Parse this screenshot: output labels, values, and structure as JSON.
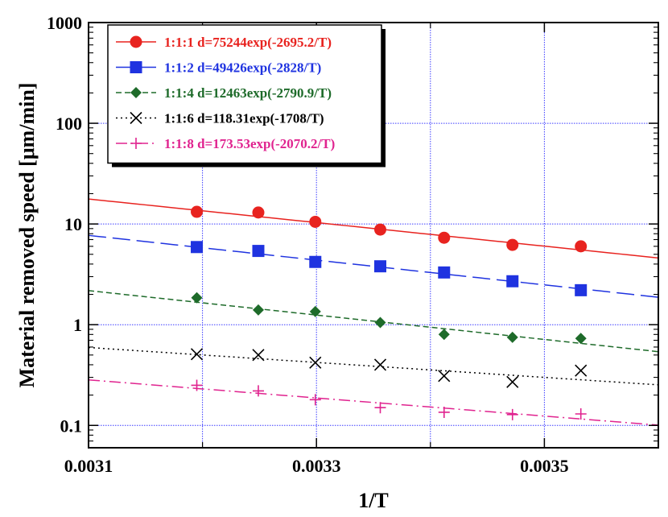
{
  "chart_data": {
    "type": "scatter",
    "title": "",
    "xlabel": "1/T",
    "ylabel": "Material removed speed [μm/min]",
    "xlim": [
      0.0031,
      0.0036
    ],
    "ylim": [
      0.06,
      1000
    ],
    "y_scale": "log",
    "grid": true,
    "legend_position": "top-left",
    "x_ticks": [
      {
        "value": 0.0031,
        "label": "0.0031"
      },
      {
        "value": 0.0033,
        "label": "0.0033"
      },
      {
        "value": 0.0035,
        "label": "0.0035"
      }
    ],
    "x_minor_ticks": [
      0.0032,
      0.0034
    ],
    "y_ticks": [
      {
        "value": 0.1,
        "label": "0.1"
      },
      {
        "value": 1,
        "label": "1"
      },
      {
        "value": 10,
        "label": "10"
      },
      {
        "value": 100,
        "label": "100"
      },
      {
        "value": 1000,
        "label": "1000"
      }
    ],
    "series": [
      {
        "name": "1:1:1 d=75244exp(-2695.2/T)",
        "color": "#e8231f",
        "marker": "circle",
        "line_style": "solid",
        "fit": {
          "a": 75244,
          "b": 2695.2
        },
        "x": [
          0.003195,
          0.003249,
          0.003299,
          0.003356,
          0.003412,
          0.003472,
          0.003532
        ],
        "y": [
          13.2,
          13.0,
          10.5,
          8.8,
          7.3,
          6.2,
          6.0
        ]
      },
      {
        "name": "1:1:2 d=49426exp(-2828/T)",
        "color": "#1f33e0",
        "marker": "square",
        "line_style": "longdash",
        "fit": {
          "a": 49426,
          "b": 2828
        },
        "x": [
          0.003195,
          0.003249,
          0.003299,
          0.003356,
          0.003412,
          0.003472,
          0.003532
        ],
        "y": [
          5.9,
          5.4,
          4.2,
          3.8,
          3.3,
          2.7,
          2.2
        ]
      },
      {
        "name": "1:1:4 d=12463exp(-2790.9/T)",
        "color": "#1e6b2a",
        "marker": "diamond",
        "line_style": "dash",
        "fit": {
          "a": 12463,
          "b": 2790.9
        },
        "x": [
          0.003195,
          0.003249,
          0.003299,
          0.003356,
          0.003412,
          0.003472,
          0.003532
        ],
        "y": [
          1.85,
          1.4,
          1.35,
          1.05,
          0.8,
          0.75,
          0.73
        ]
      },
      {
        "name": "1:1:6 d=118.31exp(-1708/T)",
        "color": "#000000",
        "marker": "x",
        "line_style": "dot",
        "fit": {
          "a": 118.31,
          "b": 1708
        },
        "x": [
          0.003195,
          0.003249,
          0.003299,
          0.003356,
          0.003412,
          0.003472,
          0.003532
        ],
        "y": [
          0.51,
          0.5,
          0.42,
          0.4,
          0.31,
          0.27,
          0.35
        ]
      },
      {
        "name": "1:1:8 d=173.53exp(-2070.2/T)",
        "color": "#e0238f",
        "marker": "plus",
        "line_style": "dashdot",
        "fit": {
          "a": 173.53,
          "b": 2070.2
        },
        "x": [
          0.003195,
          0.003249,
          0.003299,
          0.003356,
          0.003412,
          0.003472,
          0.003532
        ],
        "y": [
          0.25,
          0.22,
          0.18,
          0.15,
          0.135,
          0.128,
          0.13
        ]
      }
    ]
  }
}
